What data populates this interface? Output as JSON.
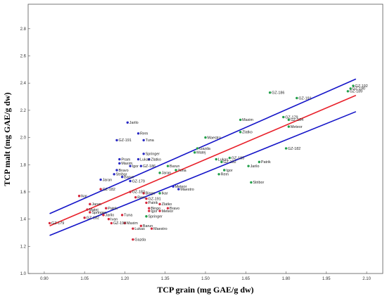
{
  "chart_data": {
    "type": "scatter",
    "title": "",
    "xlabel": "TCP grain (mg GAE/g dw)",
    "ylabel": "TCP malt (mg GAE/g dw)",
    "xlim": [
      0.84,
      2.16
    ],
    "ylim": [
      1.0,
      2.98
    ],
    "xticks": [
      "0.90",
      "1.05",
      "1.20",
      "1.35",
      "1.50",
      "1.65",
      "1.80",
      "1.95",
      "2.10"
    ],
    "yticks": [
      "1.0",
      "1.2",
      "1.4",
      "1.6",
      "1.8",
      "2.0",
      "2.2",
      "2.4",
      "2.6",
      "2.8"
    ],
    "grid": false,
    "legend": "none",
    "colors": {
      "series_a": "#2b2bc4",
      "series_b": "#22a04a",
      "series_c": "#d6283c",
      "regression": "#e8202a",
      "confidence": "#1414c8"
    },
    "series": [
      {
        "color": "#2b2bc4",
        "points": [
          {
            "label": "Jarilo",
            "x": 1.21,
            "y": 2.11
          },
          {
            "label": "Rem",
            "x": 1.25,
            "y": 2.03
          },
          {
            "label": "Tuna",
            "x": 1.27,
            "y": 1.98
          },
          {
            "label": "GZ-191",
            "x": 1.17,
            "y": 1.98
          },
          {
            "label": "Springer",
            "x": 1.27,
            "y": 1.88
          },
          {
            "label": "Lukas",
            "x": 1.25,
            "y": 1.84
          },
          {
            "label": "Zlatko",
            "x": 1.29,
            "y": 1.84
          },
          {
            "label": "Pram",
            "x": 1.18,
            "y": 1.84
          },
          {
            "label": "Maxim",
            "x": 1.18,
            "y": 1.81
          },
          {
            "label": "Igor",
            "x": 1.22,
            "y": 1.79
          },
          {
            "label": "GZ-186",
            "x": 1.26,
            "y": 1.79
          },
          {
            "label": "Bravo",
            "x": 1.17,
            "y": 1.76
          },
          {
            "label": "Stribor",
            "x": 1.16,
            "y": 1.73
          },
          {
            "label": "Barun",
            "x": 1.19,
            "y": 1.71
          },
          {
            "label": "Jaran",
            "x": 1.11,
            "y": 1.69
          },
          {
            "label": "GZ-179",
            "x": 1.22,
            "y": 1.68
          },
          {
            "label": "Meteor",
            "x": 1.38,
            "y": 1.64
          },
          {
            "label": "Maestro",
            "x": 1.4,
            "y": 1.62
          }
        ]
      },
      {
        "color": "#22a04a",
        "points": [
          {
            "label": "GZ-192",
            "x": 2.05,
            "y": 2.38
          },
          {
            "label": "GZ-190",
            "x": 2.04,
            "y": 2.36
          },
          {
            "label": "GZ-189",
            "x": 2.03,
            "y": 2.34
          },
          {
            "label": "GZ-186",
            "x": 1.74,
            "y": 2.33
          },
          {
            "label": "GZ-191",
            "x": 1.84,
            "y": 2.29
          },
          {
            "label": "Maxim",
            "x": 1.63,
            "y": 2.13
          },
          {
            "label": "GZ-179",
            "x": 1.79,
            "y": 2.15
          },
          {
            "label": "GZ-184",
            "x": 1.81,
            "y": 2.13
          },
          {
            "label": "Meteor",
            "x": 1.81,
            "y": 2.08
          },
          {
            "label": "Zlatko",
            "x": 1.63,
            "y": 2.04
          },
          {
            "label": "Maestro",
            "x": 1.5,
            "y": 2.0
          },
          {
            "label": "Gazda",
            "x": 1.47,
            "y": 1.92
          },
          {
            "label": "Matej",
            "x": 1.46,
            "y": 1.89
          },
          {
            "label": "GZ-182",
            "x": 1.8,
            "y": 1.92
          },
          {
            "label": "Lukas",
            "x": 1.54,
            "y": 1.84
          },
          {
            "label": "GZ-183",
            "x": 1.59,
            "y": 1.85
          },
          {
            "label": "GZ-192",
            "x": 1.56,
            "y": 1.82
          },
          {
            "label": "Patrik",
            "x": 1.7,
            "y": 1.82
          },
          {
            "label": "Jarilo",
            "x": 1.66,
            "y": 1.79
          },
          {
            "label": "Igor",
            "x": 1.57,
            "y": 1.76
          },
          {
            "label": "Rem",
            "x": 1.55,
            "y": 1.73
          },
          {
            "label": "Stribor",
            "x": 1.67,
            "y": 1.67
          },
          {
            "label": "Barun",
            "x": 1.36,
            "y": 1.79
          },
          {
            "label": "Tuna",
            "x": 1.39,
            "y": 1.76
          },
          {
            "label": "Jaran",
            "x": 1.33,
            "y": 1.74
          },
          {
            "label": "Ikar",
            "x": 1.33,
            "y": 1.59
          },
          {
            "label": "Springer",
            "x": 1.28,
            "y": 1.42
          }
        ]
      },
      {
        "color": "#d6283c",
        "points": [
          {
            "label": "Ikar",
            "x": 1.03,
            "y": 1.57
          },
          {
            "label": "GZ-182",
            "x": 1.11,
            "y": 1.62
          },
          {
            "label": "GZ-183",
            "x": 1.22,
            "y": 1.6
          },
          {
            "label": "Bingo",
            "x": 1.27,
            "y": 1.59
          },
          {
            "label": "Rem",
            "x": 1.24,
            "y": 1.56
          },
          {
            "label": "GZ-191",
            "x": 1.28,
            "y": 1.55
          },
          {
            "label": "Patrik",
            "x": 1.28,
            "y": 1.52
          },
          {
            "label": "Zlatko",
            "x": 1.33,
            "y": 1.51
          },
          {
            "label": "Bingo",
            "x": 1.29,
            "y": 1.48
          },
          {
            "label": "Bravo",
            "x": 1.36,
            "y": 1.48
          },
          {
            "label": "Meteor",
            "x": 1.33,
            "y": 1.46
          },
          {
            "label": "Igor",
            "x": 1.29,
            "y": 1.46
          },
          {
            "label": "Jaran",
            "x": 1.07,
            "y": 1.51
          },
          {
            "label": "Matej",
            "x": 1.06,
            "y": 1.47
          },
          {
            "label": "Patrik",
            "x": 1.13,
            "y": 1.48
          },
          {
            "label": "Springer",
            "x": 1.07,
            "y": 1.45
          },
          {
            "label": "Jarilo",
            "x": 1.12,
            "y": 1.43
          },
          {
            "label": "Tuna",
            "x": 1.19,
            "y": 1.43
          },
          {
            "label": "GZ-179",
            "x": 0.92,
            "y": 1.37
          },
          {
            "label": "GZ-182",
            "x": 1.05,
            "y": 1.41
          },
          {
            "label": "Ivan",
            "x": 1.14,
            "y": 1.4
          },
          {
            "label": "GZ-190",
            "x": 1.15,
            "y": 1.37
          },
          {
            "label": "Maxim",
            "x": 1.2,
            "y": 1.37
          },
          {
            "label": "Barun",
            "x": 1.26,
            "y": 1.35
          },
          {
            "label": "Lukas",
            "x": 1.23,
            "y": 1.33
          },
          {
            "label": "Maestro",
            "x": 1.3,
            "y": 1.33
          },
          {
            "label": "Gazda",
            "x": 1.23,
            "y": 1.25
          }
        ]
      }
    ],
    "regression": {
      "color": "#e8202a",
      "x1": 0.92,
      "y1": 1.35,
      "x2": 2.06,
      "y2": 2.31
    },
    "confidence_band": {
      "color": "#1414c8",
      "upper": {
        "x1": 0.92,
        "y1": 1.44,
        "x2": 2.06,
        "y2": 2.43
      },
      "lower": {
        "x1": 0.92,
        "y1": 1.28,
        "x2": 2.06,
        "y2": 2.19
      }
    }
  }
}
